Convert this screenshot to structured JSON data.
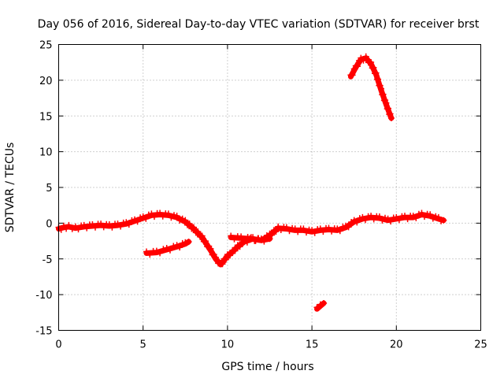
{
  "chart_data": {
    "type": "scatter",
    "title": "Day 056 of 2016, Sidereal Day-to-day VTEC variation (SDTVAR) for receiver brst",
    "xlabel": "GPS time / hours",
    "ylabel": "SDTVAR / TECUs",
    "xlim": [
      0,
      25
    ],
    "ylim": [
      -15,
      25
    ],
    "x_ticks": [
      0,
      5,
      10,
      15,
      20,
      25
    ],
    "y_ticks": [
      -15,
      -10,
      -5,
      0,
      5,
      10,
      15,
      20,
      25
    ],
    "grid": true,
    "marker": "+",
    "color": "#ff0000",
    "series": [
      {
        "name": "main track",
        "x": [
          0.0,
          0.3,
          0.6,
          1.0,
          1.5,
          2.0,
          2.5,
          3.0,
          3.5,
          4.0,
          4.5,
          5.0,
          5.5,
          6.0,
          6.5,
          7.0,
          7.5,
          8.0,
          8.5,
          9.0,
          9.3,
          9.6,
          9.8,
          10.0,
          10.3,
          10.6,
          11.0,
          11.5,
          12.0,
          12.5,
          13.0,
          13.5,
          14.0,
          14.5,
          15.0,
          15.5,
          16.0,
          16.5,
          17.0,
          17.5,
          18.0,
          18.5,
          19.0,
          19.5,
          20.0,
          20.5,
          21.0,
          21.5,
          22.0,
          22.5,
          22.8
        ],
        "y": [
          -0.8,
          -0.6,
          -0.5,
          -0.7,
          -0.5,
          -0.4,
          -0.3,
          -0.4,
          -0.3,
          -0.1,
          0.3,
          0.7,
          1.1,
          1.2,
          1.1,
          0.8,
          0.2,
          -0.8,
          -2.0,
          -3.8,
          -5.0,
          -5.8,
          -5.2,
          -4.6,
          -4.0,
          -3.3,
          -2.6,
          -2.2,
          -2.4,
          -1.7,
          -0.7,
          -0.8,
          -1.0,
          -1.0,
          -1.2,
          -1.0,
          -0.9,
          -1.0,
          -0.6,
          0.2,
          0.6,
          0.8,
          0.7,
          0.4,
          0.6,
          0.8,
          0.8,
          1.2,
          1.0,
          0.6,
          0.4
        ]
      },
      {
        "name": "segment near 5-8h",
        "x": [
          5.2,
          5.8,
          6.4,
          7.0,
          7.5,
          7.7
        ],
        "y": [
          -4.2,
          -4.1,
          -3.7,
          -3.3,
          -2.9,
          -2.6
        ]
      },
      {
        "name": "segment near 10-12h",
        "x": [
          10.2,
          10.8,
          11.4,
          12.0,
          12.5
        ],
        "y": [
          -2.0,
          -2.1,
          -2.2,
          -2.4,
          -2.2
        ]
      },
      {
        "name": "segment near 15h",
        "x": [
          15.3,
          15.5,
          15.7
        ],
        "y": [
          -12.0,
          -11.6,
          -11.2
        ]
      },
      {
        "name": "segment near 17-20h",
        "x": [
          17.3,
          17.6,
          17.9,
          18.2,
          18.5,
          18.8,
          19.1,
          19.4,
          19.7
        ],
        "y": [
          20.5,
          21.8,
          22.9,
          23.1,
          22.3,
          20.8,
          18.6,
          16.6,
          14.7
        ]
      }
    ]
  }
}
